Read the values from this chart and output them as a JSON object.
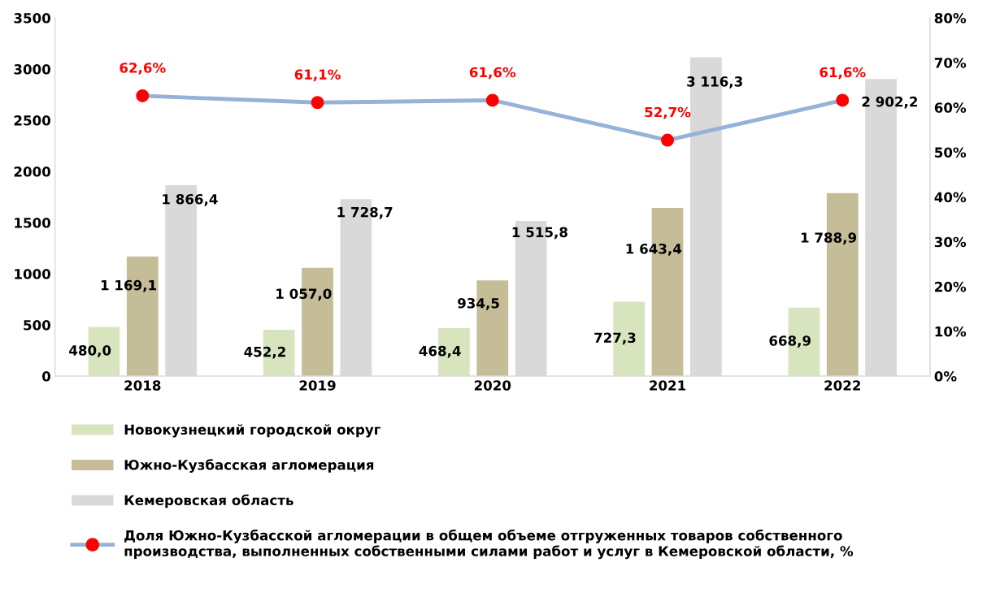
{
  "chart_data": {
    "type": "bar",
    "categories": [
      "2018",
      "2019",
      "2020",
      "2021",
      "2022"
    ],
    "series": [
      {
        "name": "Новокузнецкий городской округ",
        "color": "#d7e4bd",
        "values": [
          480.0,
          452.2,
          468.4,
          727.3,
          668.9
        ],
        "value_labels": [
          "480,0",
          "452,2",
          "468,4",
          "727,3",
          "668,9"
        ]
      },
      {
        "name": "Южно-Кузбасская агломерация",
        "color": "#c4bd97",
        "values": [
          1169.1,
          1057.0,
          934.5,
          1643.4,
          1788.9
        ],
        "value_labels": [
          "1 169,1",
          "1 057,0",
          "934,5",
          "1 643,4",
          "1 788,9"
        ]
      },
      {
        "name": "Кемеровская область",
        "color": "#d9d9d9",
        "values": [
          1866.4,
          1728.7,
          1515.8,
          3116.3,
          2902.2
        ],
        "value_labels": [
          "1 866,4",
          "1 728,7",
          "1 515,8",
          "3 116,3",
          "2 902,2"
        ]
      },
      {
        "name": "Доля Южно-Кузбасской агломерации в общем объеме отгруженных товаров собственного\nпроизводства, выполненных собственными силами работ и услуг в Кемеровской области, %",
        "type": "line",
        "axis": "y2",
        "color": "#95b3d7",
        "colors": [
          "#ff0000",
          "#ff0000",
          "#ff0000",
          "#ff0000",
          "#ff0000"
        ],
        "marker": "circle",
        "values": [
          62.6,
          61.1,
          61.6,
          52.7,
          61.6
        ],
        "value_labels": [
          "62,6%",
          "61,1%",
          "61,6%",
          "52,7%",
          "61,6%"
        ]
      }
    ],
    "ylim": [
      0,
      3500
    ],
    "yticks": [
      0,
      500,
      1000,
      1500,
      2000,
      2500,
      3000,
      3500
    ],
    "y2lim": [
      0,
      80
    ],
    "y2ticks": [
      {
        "value": 0,
        "label": "0%"
      },
      {
        "value": 10,
        "label": "10%"
      },
      {
        "value": 20,
        "label": "20%"
      },
      {
        "value": 30,
        "label": "30%"
      },
      {
        "value": 40,
        "label": "40%"
      },
      {
        "value": 50,
        "label": "50%"
      },
      {
        "value": 60,
        "label": "60%"
      },
      {
        "value": 70,
        "label": "70%"
      },
      {
        "value": 80,
        "label": "80%"
      }
    ],
    "grid": false,
    "legend": "bottom"
  }
}
